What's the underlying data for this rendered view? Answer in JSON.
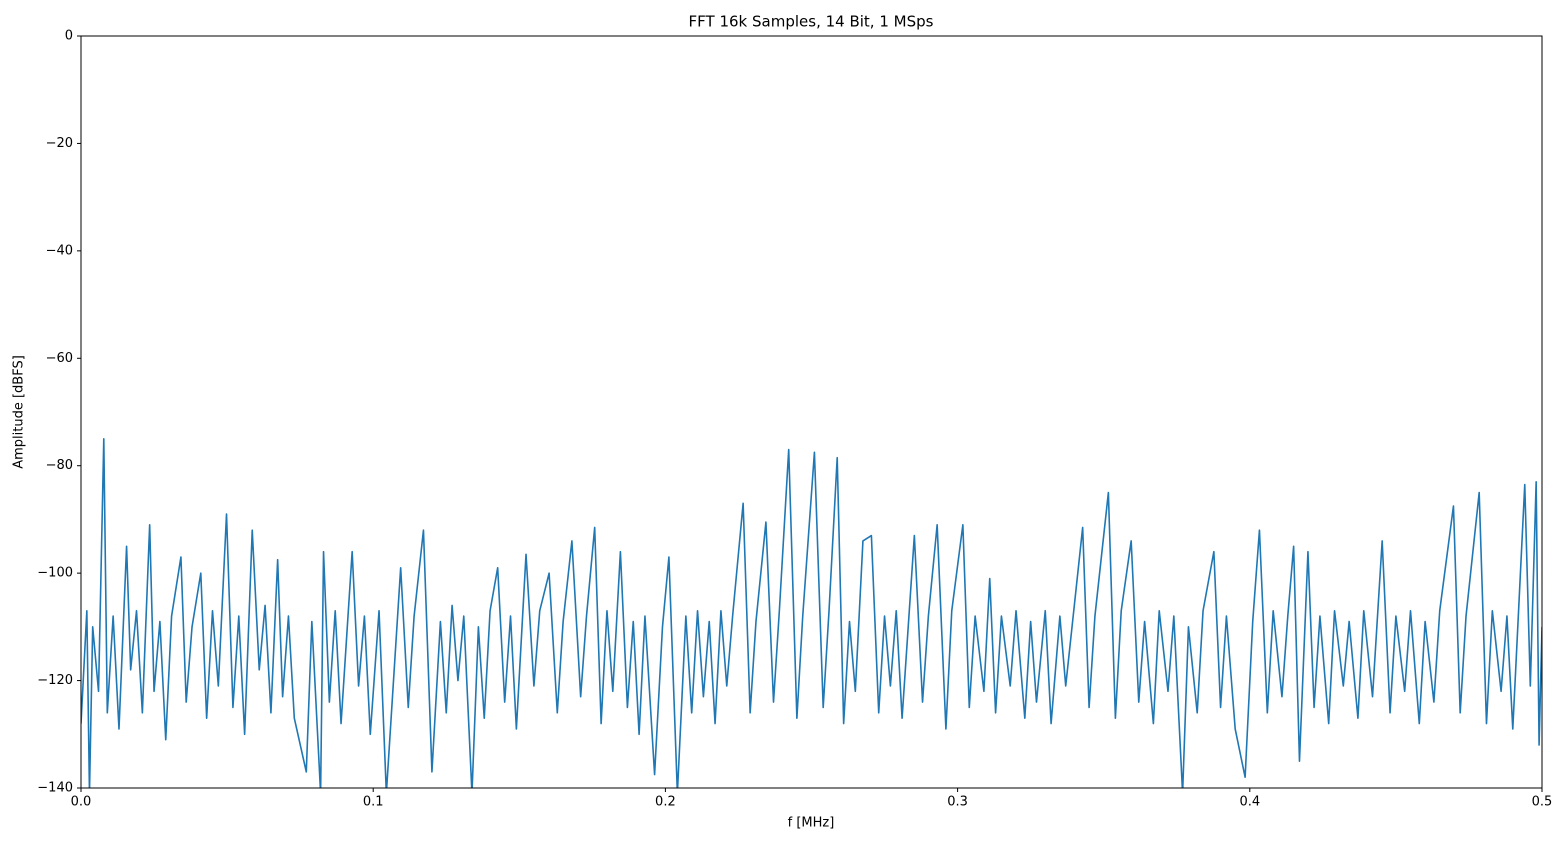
{
  "chart_data": {
    "type": "line",
    "title": "FFT 16k Samples, 14 Bit, 1 MSps",
    "xlabel": "f [MHz]",
    "ylabel": "Amplitude [dBFS]",
    "color": "#1f77b4",
    "xlim": [
      0,
      0.5
    ],
    "ylim": [
      -140,
      0
    ],
    "xticks": [
      {
        "value": 0,
        "label": "0.0"
      },
      0.1,
      0.2,
      0.3,
      0.4,
      0.5
    ],
    "yticks": [
      {
        "value": -140,
        "label": "−140"
      },
      {
        "value": -120,
        "label": "−120"
      },
      {
        "value": -100,
        "label": "−100"
      },
      {
        "value": -80,
        "label": "−80"
      },
      {
        "value": -60,
        "label": "−60"
      },
      {
        "value": -40,
        "label": "−40"
      },
      {
        "value": -20,
        "label": "−20"
      },
      0
    ],
    "x": [
      0.0,
      0.002,
      0.0029,
      0.004,
      0.006,
      0.0078,
      0.009,
      0.011,
      0.013,
      0.0156,
      0.017,
      0.019,
      0.021,
      0.0235,
      0.025,
      0.027,
      0.029,
      0.031,
      0.0342,
      0.036,
      0.038,
      0.041,
      0.043,
      0.045,
      0.047,
      0.0498,
      0.052,
      0.054,
      0.056,
      0.0586,
      0.061,
      0.063,
      0.065,
      0.0673,
      0.069,
      0.071,
      0.073,
      0.0771,
      0.079,
      0.082,
      0.083,
      0.085,
      0.087,
      0.089,
      0.0928,
      0.095,
      0.097,
      0.099,
      0.102,
      0.1045,
      0.1094,
      0.112,
      0.114,
      0.1172,
      0.1201,
      0.123,
      0.125,
      0.127,
      0.129,
      0.131,
      0.1338,
      0.136,
      0.138,
      0.14,
      0.1426,
      0.145,
      0.147,
      0.149,
      0.1523,
      0.155,
      0.157,
      0.1602,
      0.163,
      0.165,
      0.168,
      0.171,
      0.173,
      0.1758,
      0.178,
      0.18,
      0.182,
      0.1846,
      0.187,
      0.189,
      0.191,
      0.193,
      0.1963,
      0.199,
      0.2012,
      0.2041,
      0.207,
      0.209,
      0.211,
      0.213,
      0.215,
      0.217,
      0.219,
      0.221,
      0.223,
      0.2266,
      0.229,
      0.231,
      0.2344,
      0.237,
      0.239,
      0.2422,
      0.245,
      0.247,
      0.251,
      0.254,
      0.256,
      0.2588,
      0.261,
      0.263,
      0.265,
      0.2676,
      0.2705,
      0.273,
      0.275,
      0.277,
      0.279,
      0.281,
      0.2852,
      0.288,
      0.29,
      0.293,
      0.296,
      0.298,
      0.3018,
      0.304,
      0.306,
      0.309,
      0.311,
      0.313,
      0.315,
      0.318,
      0.32,
      0.323,
      0.325,
      0.327,
      0.33,
      0.332,
      0.335,
      0.337,
      0.3428,
      0.345,
      0.347,
      0.3516,
      0.354,
      0.356,
      0.3594,
      0.362,
      0.364,
      0.367,
      0.369,
      0.372,
      0.374,
      0.377,
      0.379,
      0.382,
      0.384,
      0.3877,
      0.39,
      0.392,
      0.395,
      0.3984,
      0.401,
      0.4033,
      0.406,
      0.408,
      0.411,
      0.413,
      0.415,
      0.417,
      0.4199,
      0.422,
      0.424,
      0.427,
      0.429,
      0.432,
      0.434,
      0.437,
      0.439,
      0.442,
      0.4453,
      0.448,
      0.45,
      0.453,
      0.455,
      0.458,
      0.46,
      0.463,
      0.465,
      0.4697,
      0.472,
      0.474,
      0.4785,
      0.481,
      0.483,
      0.486,
      0.488,
      0.49,
      0.4941,
      0.496,
      0.498,
      0.499,
      0.5
    ],
    "values": [
      -128,
      -107,
      -141,
      -110,
      -122,
      -75,
      -126,
      -108,
      -129,
      -95,
      -118,
      -107,
      -126,
      -91,
      -122,
      -109,
      -131,
      -108,
      -97,
      -124,
      -110,
      -100,
      -127,
      -107,
      -121,
      -89,
      -125,
      -108,
      -130,
      -92,
      -118,
      -106,
      -126,
      -97.5,
      -123,
      -108,
      -127,
      -137,
      -109,
      -141,
      -96,
      -124,
      -107,
      -128,
      -96,
      -121,
      -108,
      -130,
      -107,
      -141,
      -99,
      -125,
      -108,
      -92,
      -137,
      -109,
      -126,
      -106,
      -120,
      -108,
      -141,
      -110,
      -127,
      -107,
      -99,
      -124,
      -108,
      -129,
      -96.5,
      -121,
      -107,
      -100,
      -126,
      -109,
      -94,
      -123,
      -108,
      -91.5,
      -128,
      -107,
      -122,
      -96,
      -125,
      -109,
      -130,
      -108,
      -137.5,
      -110,
      -97,
      -141,
      -108,
      -126,
      -107,
      -123,
      -109,
      -128,
      -107,
      -121,
      -108,
      -87,
      -126,
      -109,
      -90.5,
      -124,
      -107,
      -77,
      -127,
      -108,
      -77.5,
      -125,
      -107,
      -78.5,
      -128,
      -109,
      -122,
      -94,
      -93,
      -126,
      -108,
      -121,
      -107,
      -127,
      -93,
      -124,
      -108,
      -91,
      -129,
      -107,
      -91,
      -125,
      -108,
      -122,
      -101,
      -126,
      -108,
      -121,
      -107,
      -127,
      -109,
      -124,
      -107,
      -128,
      -108,
      -121,
      -91.5,
      -125,
      -108,
      -85,
      -127,
      -107,
      -94,
      -124,
      -109,
      -128,
      -107,
      -122,
      -108,
      -141,
      -110,
      -126,
      -107,
      -96,
      -125,
      -108,
      -129,
      -138,
      -109,
      -92,
      -126,
      -107,
      -123,
      -108,
      -95,
      -135,
      -96,
      -125,
      -108,
      -128,
      -107,
      -121,
      -109,
      -127,
      -107,
      -123,
      -94,
      -126,
      -108,
      -122,
      -107,
      -128,
      -109,
      -124,
      -107,
      -87.5,
      -126,
      -108,
      -85,
      -128,
      -107,
      -122,
      -108,
      -129,
      -83.5,
      -121,
      -83,
      -132,
      -110
    ]
  }
}
